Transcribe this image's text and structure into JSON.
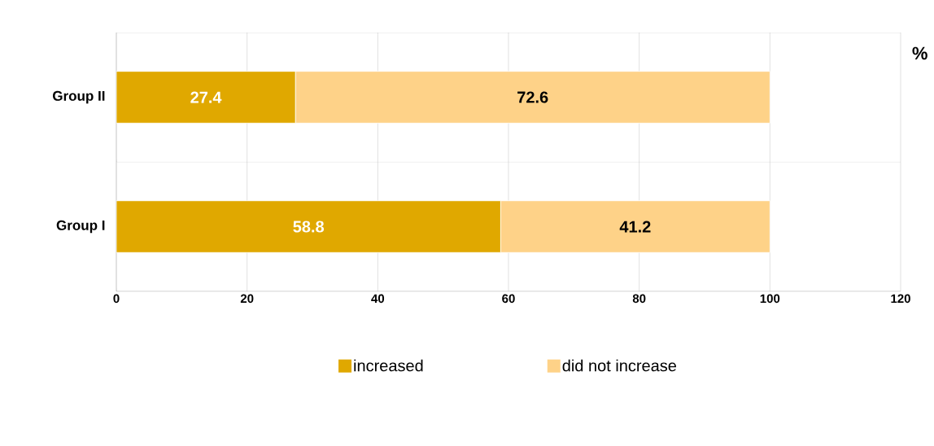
{
  "chart_data": {
    "type": "bar",
    "orientation": "horizontal",
    "stacked": true,
    "xlabel": "%",
    "categories": [
      "Group II",
      "Group I"
    ],
    "series": [
      {
        "name": "increased",
        "color": "#e0a800",
        "values": [
          27.4,
          58.8
        ]
      },
      {
        "name": "did not increase",
        "color": "#fed288",
        "values": [
          72.6,
          41.2
        ]
      }
    ],
    "xlim": [
      0,
      120
    ],
    "xticks": [
      0,
      20,
      40,
      60,
      80,
      100,
      120
    ],
    "grid": true,
    "legend": "bottom",
    "data_labels": true
  }
}
